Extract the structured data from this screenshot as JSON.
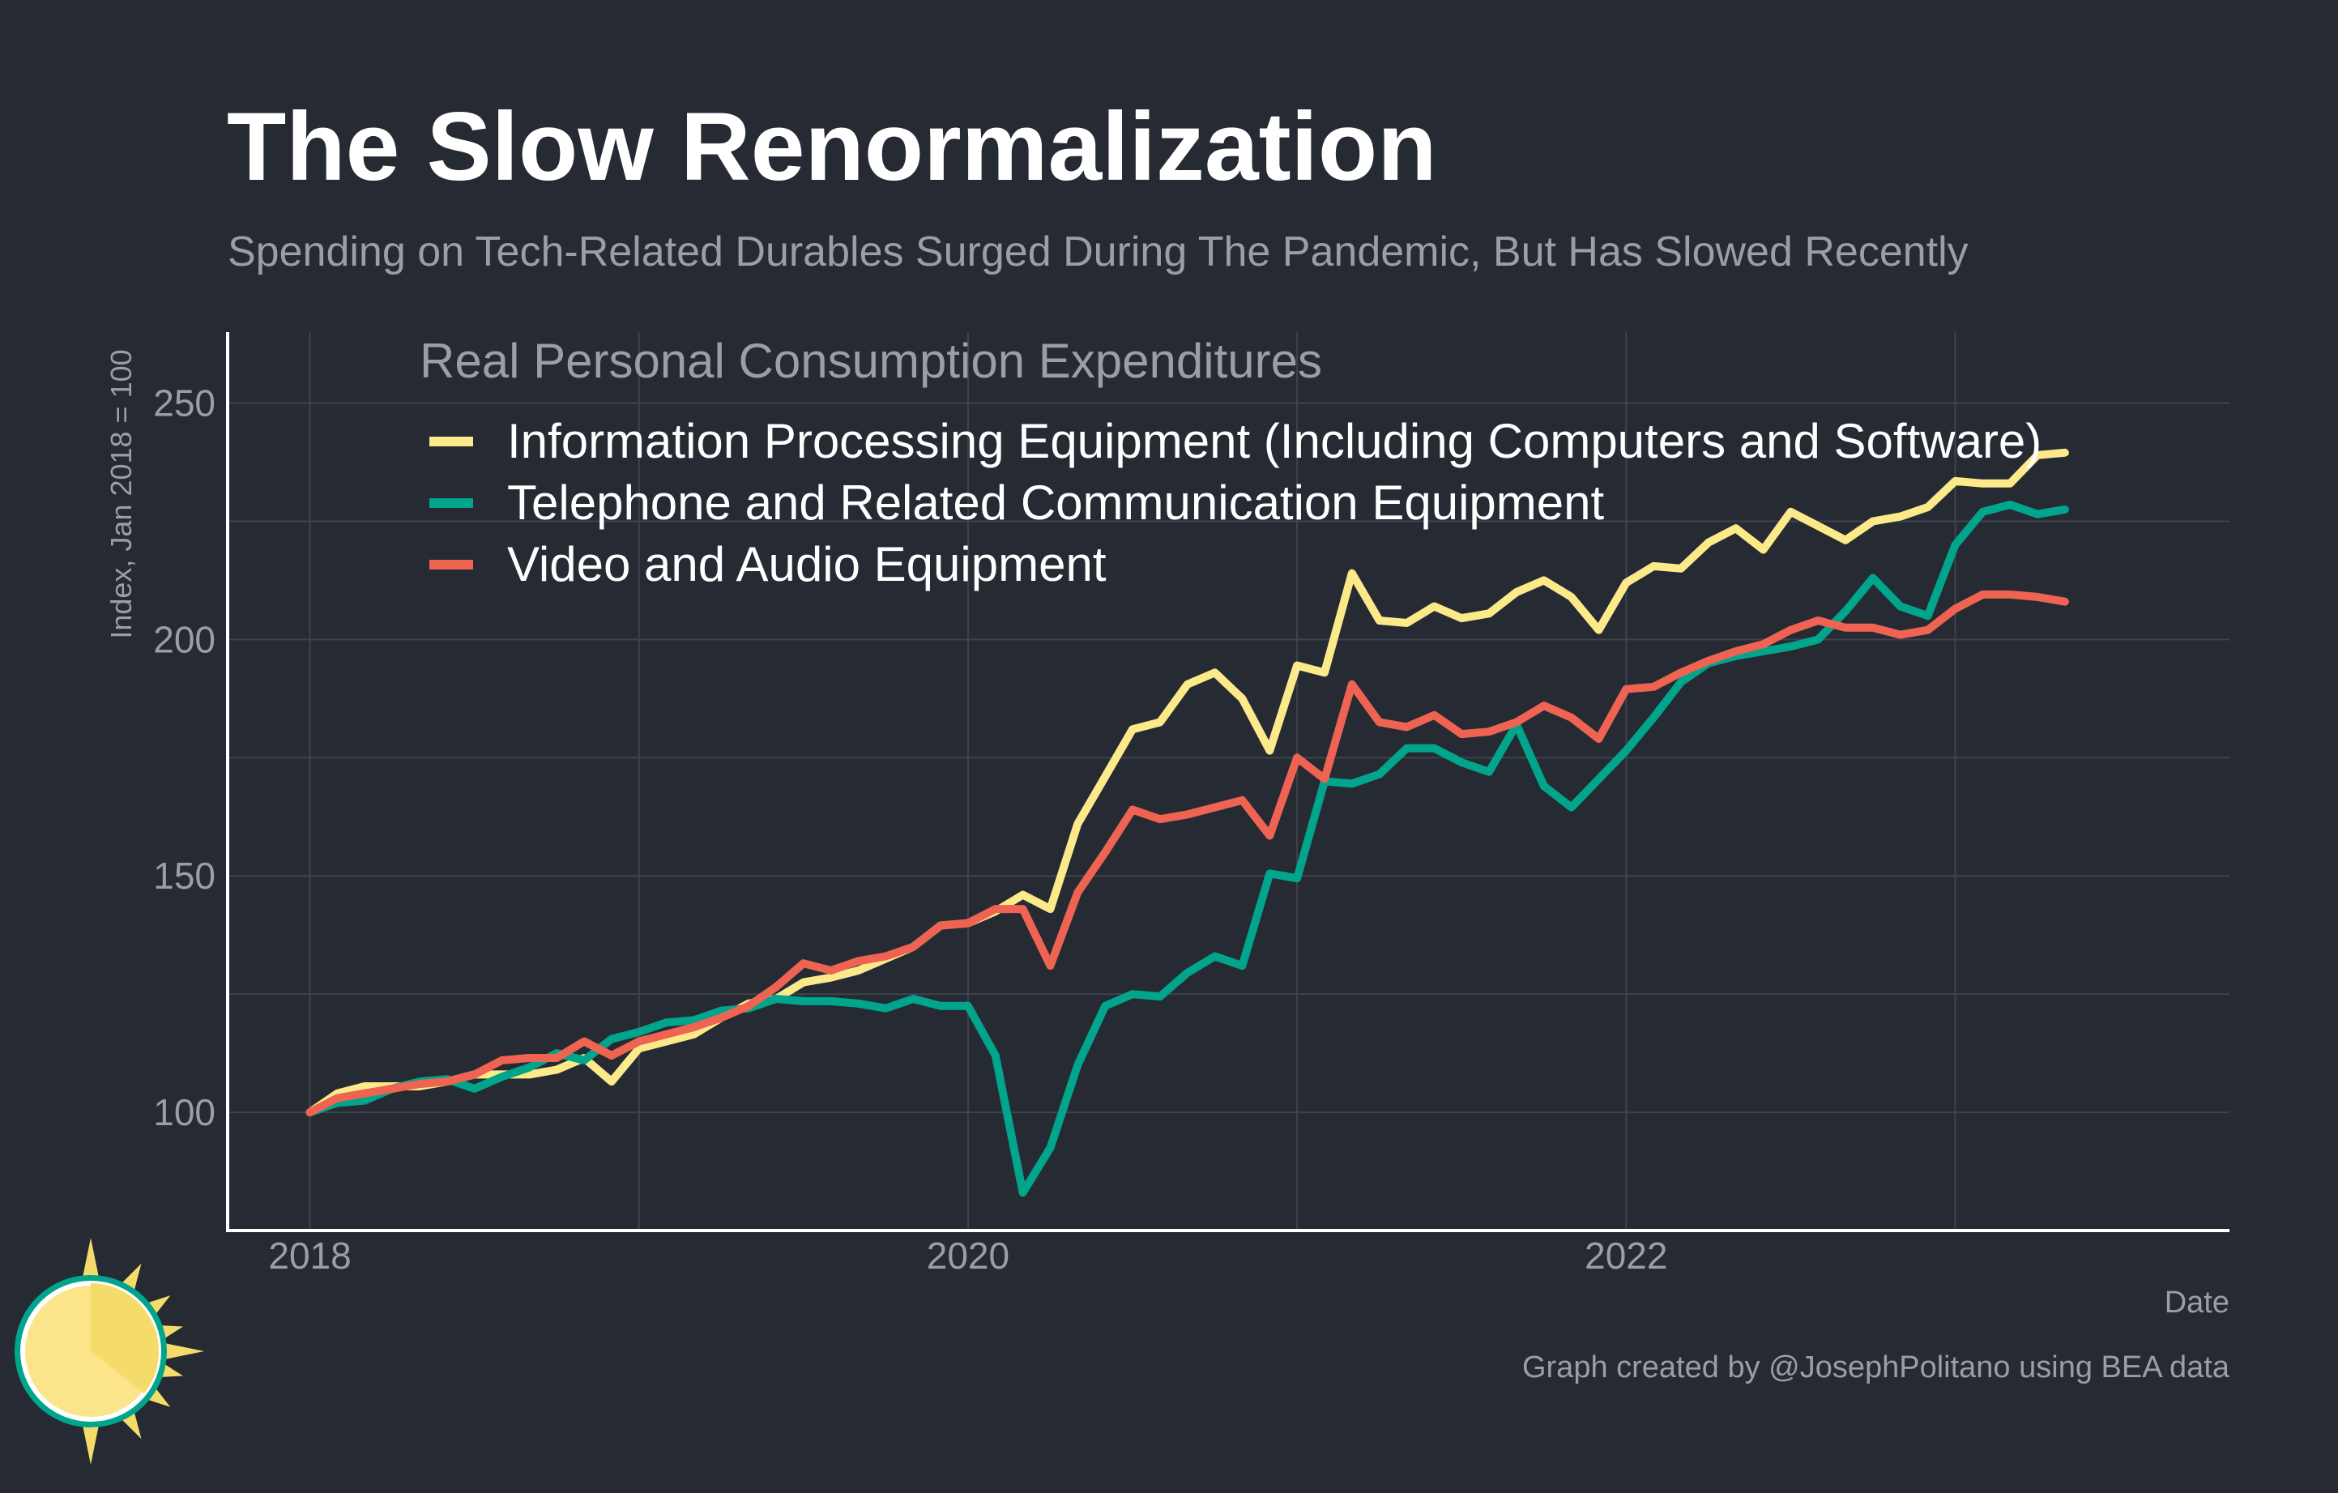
{
  "title": "The Slow Renormalization",
  "subtitle": "Spending on Tech-Related Durables Surged During The Pandemic, But Has Slowed Recently",
  "caption": "Graph created by @JosephPolitano using BEA data",
  "colors": {
    "background": "#252a33",
    "grid": "#3e434c",
    "axis": "#ffffff",
    "muted_text": "#9a9ea6",
    "info_processing": "#fce98a",
    "telephone": "#00a58c",
    "video_audio": "#ee6352"
  },
  "logo": {
    "icon": "sun-logo-icon"
  },
  "chart_data": {
    "type": "line",
    "xlabel": "Date",
    "ylabel": "Index, Jan 2018 = 100",
    "x_ticks": [
      "2018",
      "2020",
      "2022"
    ],
    "y_ticks": [
      100,
      150,
      200,
      250
    ],
    "xlim": [
      "2017-10",
      "2023-11"
    ],
    "ylim": [
      75,
      265
    ],
    "grid": true,
    "legend": {
      "title": "Real Personal Consumption Expenditures",
      "position": "top-left"
    },
    "x_start": "2018-01",
    "x_frequency": "monthly",
    "series": [
      {
        "name": "Information Processing Equipment (Including Computers and Software)",
        "color": "#fce98a",
        "values": [
          100,
          104,
          105.5,
          105.5,
          105.5,
          106.5,
          108,
          108,
          108,
          109,
          111.5,
          106.5,
          113.5,
          115,
          116.5,
          120,
          123,
          124,
          127.5,
          128.5,
          130,
          132.5,
          135,
          139.5,
          140,
          142.5,
          146,
          143,
          161,
          171,
          181,
          182.5,
          190.5,
          193,
          187.5,
          176.5,
          194.5,
          193,
          214,
          204,
          203.5,
          207,
          204.5,
          205.5,
          210,
          212.5,
          209,
          202,
          212,
          215.5,
          215,
          220.5,
          223.5,
          219,
          227,
          224,
          221,
          225,
          226,
          228,
          233.5,
          233,
          233,
          239,
          239.5
        ]
      },
      {
        "name": "Telephone and Related Communication Equipment",
        "color": "#00a58c",
        "values": [
          100,
          102,
          102.5,
          105,
          106.5,
          107,
          105,
          107.5,
          109.5,
          112.5,
          111,
          115.5,
          117,
          119,
          119.5,
          121.5,
          122,
          124,
          123.5,
          123.5,
          123,
          122,
          124,
          122.5,
          122.5,
          112,
          83,
          92.5,
          110,
          122.5,
          125,
          124.5,
          129.5,
          133,
          131,
          150.5,
          149.5,
          170,
          169.5,
          171.5,
          177,
          177,
          174,
          172,
          182,
          169,
          164.5,
          170.5,
          176.5,
          183.5,
          191,
          195,
          196.5,
          197.5,
          198.5,
          200,
          206,
          213,
          207,
          205,
          220,
          227,
          228.5,
          226.5,
          227.5
        ]
      },
      {
        "name": "Video and Audio Equipment",
        "color": "#ee6352",
        "values": [
          100,
          103,
          104,
          105,
          106,
          106.5,
          108,
          111,
          111.5,
          111.5,
          115,
          112,
          115,
          116.5,
          118,
          120,
          122.5,
          126.5,
          131.5,
          130,
          132,
          133,
          135,
          139.5,
          140,
          143,
          143,
          131,
          146.5,
          155,
          164,
          162,
          163,
          164.5,
          166,
          158.5,
          175,
          170.5,
          190.5,
          182.5,
          181.5,
          184,
          180,
          180.5,
          182.5,
          186,
          183.5,
          179,
          189.5,
          190,
          193,
          195.5,
          197.5,
          199,
          202,
          204,
          202.5,
          202.5,
          201,
          202,
          206.5,
          209.5,
          209.5,
          209,
          208
        ]
      }
    ]
  }
}
